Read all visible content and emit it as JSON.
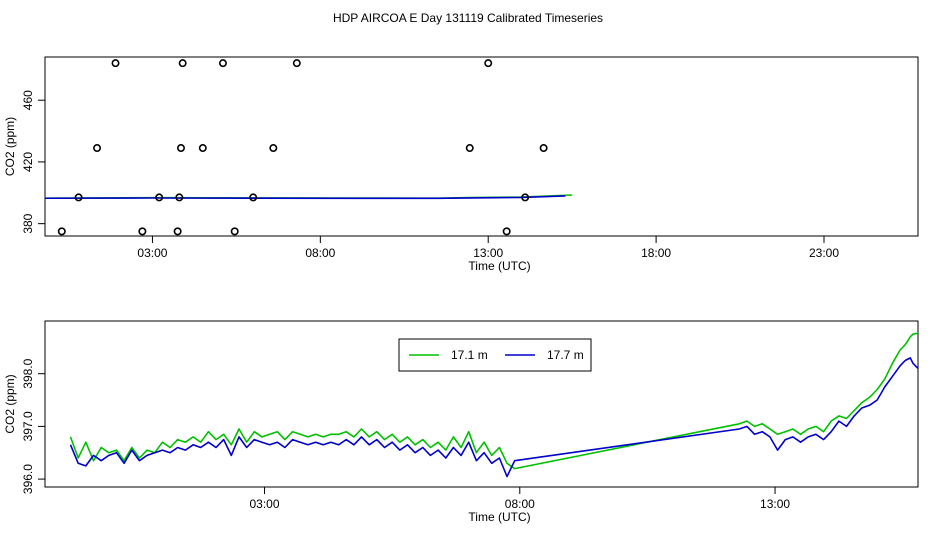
{
  "page_title": "HDP AIRCOA E  Day 131119  Calibrated Timeseries",
  "colors": {
    "green": "#00c000",
    "blue": "#0000cc",
    "black": "#000000"
  },
  "chart_data": [
    {
      "type": "scatter",
      "title": "",
      "xlabel": "Time (UTC)",
      "ylabel": "CO2 (ppm)",
      "xlim": [
        -0.2,
        25.8
      ],
      "ylim": [
        372,
        488
      ],
      "xticks": [
        3,
        8,
        13,
        18,
        23
      ],
      "xtick_labels": [
        "03:00",
        "08:00",
        "13:00",
        "18:00",
        "23:00"
      ],
      "yticks": [
        380,
        420,
        460
      ],
      "ytick_labels": [
        "380",
        "420",
        "460"
      ],
      "points": [
        [
          0.3,
          375
        ],
        [
          0.8,
          397
        ],
        [
          1.35,
          429
        ],
        [
          1.9,
          484
        ],
        [
          2.7,
          375
        ],
        [
          3.2,
          397
        ],
        [
          3.75,
          375
        ],
        [
          3.8,
          397
        ],
        [
          3.85,
          429
        ],
        [
          3.9,
          484
        ],
        [
          4.5,
          429
        ],
        [
          5.1,
          484
        ],
        [
          5.45,
          375
        ],
        [
          6.0,
          397
        ],
        [
          6.6,
          429
        ],
        [
          7.3,
          484
        ],
        [
          12.45,
          429
        ],
        [
          13.0,
          484
        ],
        [
          13.55,
          375
        ],
        [
          14.1,
          397
        ],
        [
          14.65,
          429
        ]
      ],
      "series": [
        {
          "name": "green",
          "color": "#00c000",
          "x": [
            -0.7,
            3,
            6,
            9,
            11.5,
            12.5,
            14,
            15.5
          ],
          "y": [
            396.5,
            396.8,
            396.7,
            396.6,
            396.5,
            396.9,
            397.2,
            398.6
          ]
        },
        {
          "name": "blue",
          "color": "#0000cc",
          "x": [
            -0.7,
            3,
            6,
            9,
            11.5,
            12.5,
            14,
            15.3
          ],
          "y": [
            396.4,
            396.6,
            396.5,
            396.4,
            396.4,
            396.7,
            397.0,
            398.0
          ]
        }
      ]
    },
    {
      "type": "line",
      "title": "",
      "xlabel": "Time (UTC)",
      "ylabel": "CO2 (ppm)",
      "xlim": [
        -1.3,
        15.8
      ],
      "ylim": [
        395.85,
        399.0
      ],
      "xticks": [
        3,
        8,
        13
      ],
      "xtick_labels": [
        "03:00",
        "08:00",
        "13:00"
      ],
      "yticks": [
        396.0,
        397.0,
        398.0
      ],
      "ytick_labels": [
        "396.0",
        "397.0",
        "398.0"
      ],
      "legend": {
        "position": "top-center",
        "entries": [
          {
            "label": "17.1 m",
            "color": "#00c000"
          },
          {
            "label": "17.7 m",
            "color": "#0000cc"
          }
        ]
      },
      "series": [
        {
          "name": "17.1 m",
          "color": "#00c000",
          "x": [
            -0.8,
            -0.65,
            -0.5,
            -0.35,
            -0.2,
            -0.05,
            0.1,
            0.25,
            0.4,
            0.55,
            0.7,
            0.85,
            1.0,
            1.15,
            1.3,
            1.45,
            1.6,
            1.75,
            1.9,
            2.05,
            2.2,
            2.35,
            2.5,
            2.65,
            2.8,
            2.95,
            3.1,
            3.25,
            3.4,
            3.55,
            3.7,
            3.85,
            4.0,
            4.15,
            4.3,
            4.45,
            4.6,
            4.75,
            4.9,
            5.05,
            5.2,
            5.35,
            5.5,
            5.65,
            5.8,
            5.95,
            6.1,
            6.25,
            6.4,
            6.55,
            6.7,
            6.85,
            7.0,
            7.15,
            7.3,
            7.45,
            7.6,
            7.75,
            7.9,
            12.3,
            12.45,
            12.6,
            12.75,
            12.9,
            13.05,
            13.2,
            13.35,
            13.5,
            13.65,
            13.8,
            13.95,
            14.1,
            14.25,
            14.4,
            14.55,
            14.7,
            14.85,
            15.0,
            15.15,
            15.3,
            15.45,
            15.55,
            15.65,
            15.7,
            15.85,
            16.0
          ],
          "y": [
            396.8,
            396.4,
            396.7,
            396.35,
            396.6,
            396.5,
            396.55,
            396.35,
            396.6,
            396.4,
            396.55,
            396.5,
            396.7,
            396.6,
            396.75,
            396.7,
            396.8,
            396.7,
            396.9,
            396.75,
            396.85,
            396.65,
            396.95,
            396.7,
            396.9,
            396.8,
            396.85,
            396.9,
            396.75,
            396.9,
            396.85,
            396.8,
            396.85,
            396.8,
            396.85,
            396.85,
            396.9,
            396.8,
            396.95,
            396.8,
            396.9,
            396.75,
            396.85,
            396.7,
            396.8,
            396.65,
            396.75,
            396.6,
            396.7,
            396.55,
            396.8,
            396.6,
            396.9,
            396.5,
            396.7,
            396.45,
            396.6,
            396.3,
            396.2,
            397.05,
            397.1,
            397.0,
            397.05,
            396.95,
            396.85,
            396.9,
            396.95,
            396.85,
            396.95,
            397.0,
            396.9,
            397.1,
            397.2,
            397.15,
            397.3,
            397.45,
            397.55,
            397.7,
            397.9,
            398.2,
            398.45,
            398.55,
            398.7,
            398.75,
            398.78,
            398.8
          ]
        },
        {
          "name": "17.7 m",
          "color": "#0000cc",
          "x": [
            -0.8,
            -0.65,
            -0.5,
            -0.35,
            -0.2,
            -0.05,
            0.1,
            0.25,
            0.4,
            0.55,
            0.7,
            0.85,
            1.0,
            1.15,
            1.3,
            1.45,
            1.6,
            1.75,
            1.9,
            2.05,
            2.2,
            2.35,
            2.5,
            2.65,
            2.8,
            2.95,
            3.1,
            3.25,
            3.4,
            3.55,
            3.7,
            3.85,
            4.0,
            4.15,
            4.3,
            4.45,
            4.6,
            4.75,
            4.9,
            5.05,
            5.2,
            5.35,
            5.5,
            5.65,
            5.8,
            5.95,
            6.1,
            6.25,
            6.4,
            6.55,
            6.7,
            6.85,
            7.0,
            7.15,
            7.3,
            7.45,
            7.6,
            7.75,
            7.9,
            12.3,
            12.45,
            12.6,
            12.75,
            12.9,
            13.05,
            13.2,
            13.35,
            13.5,
            13.65,
            13.8,
            13.95,
            14.1,
            14.25,
            14.4,
            14.55,
            14.7,
            14.85,
            15.0,
            15.15,
            15.3,
            15.45,
            15.55,
            15.65,
            15.7,
            15.85
          ],
          "y": [
            396.65,
            396.3,
            396.25,
            396.45,
            396.35,
            396.45,
            396.5,
            396.3,
            396.55,
            396.35,
            396.45,
            396.5,
            396.55,
            396.5,
            396.6,
            396.55,
            396.65,
            396.6,
            396.7,
            396.6,
            396.75,
            396.45,
            396.8,
            396.6,
            396.75,
            396.7,
            396.65,
            396.7,
            396.6,
            396.75,
            396.7,
            396.65,
            396.7,
            396.65,
            396.7,
            396.65,
            396.75,
            396.65,
            396.8,
            396.65,
            396.75,
            396.6,
            396.7,
            396.55,
            396.65,
            396.5,
            396.6,
            396.45,
            396.55,
            396.4,
            396.6,
            396.45,
            396.7,
            396.35,
            396.5,
            396.3,
            396.4,
            396.05,
            396.35,
            396.95,
            397.0,
            396.85,
            396.9,
            396.8,
            396.55,
            396.75,
            396.8,
            396.7,
            396.8,
            396.85,
            396.75,
            396.9,
            397.1,
            397.0,
            397.2,
            397.35,
            397.4,
            397.5,
            397.75,
            397.95,
            398.15,
            398.25,
            398.3,
            398.2,
            398.05
          ]
        }
      ]
    }
  ]
}
